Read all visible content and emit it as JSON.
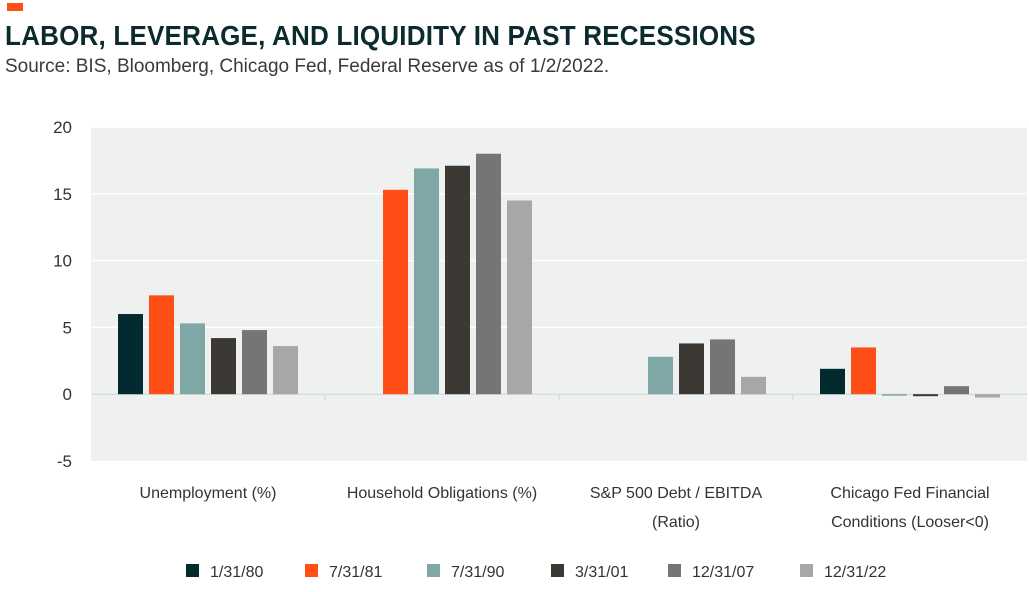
{
  "header": {
    "title": "LABOR, LEVERAGE, AND LIQUIDITY IN PAST RECESSIONS",
    "subtitle": "Source: BIS, Bloomberg, Chicago Fed, Federal Reserve as of 1/2/2022."
  },
  "colors": {
    "accent": "#ff4f17",
    "plot_background": "#eef1f0",
    "gridline": "#ffffff",
    "baseline": "#cfd4d2"
  },
  "chart_data": {
    "type": "bar",
    "title": "LABOR, LEVERAGE, AND LIQUIDITY IN PAST RECESSIONS",
    "subtitle": "Source: BIS, Bloomberg, Chicago Fed, Federal Reserve as of 1/2/2022.",
    "xlabel": "",
    "ylabel": "",
    "ylim": [
      -5,
      20
    ],
    "yticks": [
      20,
      15,
      10,
      5,
      0,
      -5
    ],
    "grid": true,
    "legend_position": "bottom",
    "categories": [
      [
        "Unemployment (%)"
      ],
      [
        "Household Obligations (%)"
      ],
      [
        "S&P 500 Debt / EBITDA",
        "(Ratio)"
      ],
      [
        "Chicago Fed Financial",
        "Conditions (Looser<0)"
      ]
    ],
    "series": [
      {
        "name": "1/31/80",
        "color": "#032b2f",
        "values": [
          6.0,
          null,
          null,
          1.9
        ]
      },
      {
        "name": "7/31/81",
        "color": "#ff4f17",
        "values": [
          7.4,
          15.3,
          null,
          3.5
        ]
      },
      {
        "name": "7/31/90",
        "color": "#7fa7a5",
        "values": [
          5.3,
          16.9,
          2.8,
          -0.1
        ]
      },
      {
        "name": "3/31/01",
        "color": "#3c3834",
        "values": [
          4.2,
          17.1,
          3.8,
          -0.15
        ]
      },
      {
        "name": "12/31/07",
        "color": "#757575",
        "values": [
          4.8,
          18.0,
          4.1,
          0.6
        ]
      },
      {
        "name": "12/31/22",
        "color": "#a7a7a7",
        "values": [
          3.6,
          14.5,
          1.3,
          -0.25
        ]
      }
    ]
  }
}
